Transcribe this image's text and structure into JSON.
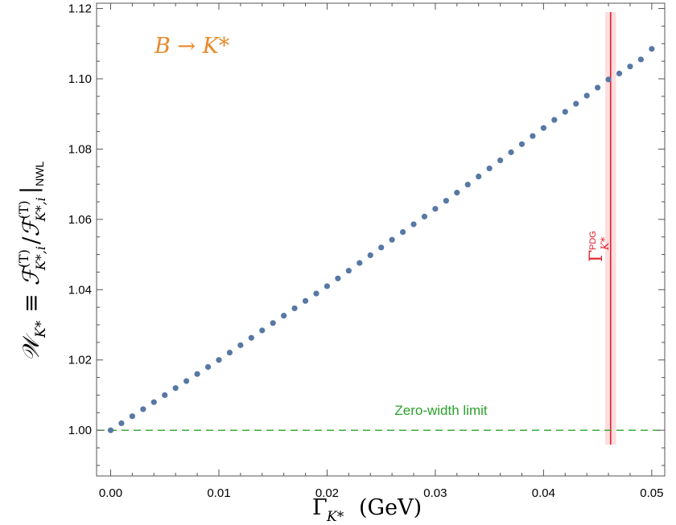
{
  "chart_data": {
    "type": "scatter",
    "title": "",
    "annotation": "B → K*",
    "xlabel": {
      "main": "Γ",
      "sub": "K*",
      "unit": "(GeV)"
    },
    "ylabel": {
      "lhs": "𝒲",
      "lhs_sub": "K*",
      "op": "≡",
      "num": "ℱ",
      "num_sup": "(T)",
      "num_sub": "K*,i",
      "slash": "/",
      "den": "ℱ",
      "den_sup": "(T)",
      "den_sub": "K*,i",
      "bar_sub": "NWL"
    },
    "xlim": [
      -0.0013,
      0.0512
    ],
    "ylim": [
      0.987,
      1.1215
    ],
    "x_ticks": [
      0.0,
      0.01,
      0.02,
      0.03,
      0.04,
      0.05
    ],
    "x_tick_labels": [
      "0.00",
      "0.01",
      "0.02",
      "0.03",
      "0.04",
      "0.05"
    ],
    "y_ticks": [
      1.0,
      1.02,
      1.04,
      1.06,
      1.08,
      1.1,
      1.12
    ],
    "y_tick_labels": [
      "1.00",
      "1.02",
      "1.04",
      "1.06",
      "1.08",
      "1.10",
      "1.12"
    ],
    "series": [
      {
        "color": "#5778a4",
        "x_start": 0.0,
        "x_step": 0.001,
        "y": [
          1.0,
          1.002,
          1.004,
          1.006,
          1.008,
          1.01,
          1.012,
          1.014,
          1.016,
          1.018,
          1.02,
          1.0221,
          1.0242,
          1.0263,
          1.0284,
          1.0305,
          1.0326,
          1.0347,
          1.0368,
          1.0389,
          1.041,
          1.0432,
          1.0454,
          1.0476,
          1.0498,
          1.052,
          1.0542,
          1.0564,
          1.0586,
          1.0608,
          1.063,
          1.0653,
          1.0676,
          1.0699,
          1.0722,
          1.0745,
          1.0768,
          1.0791,
          1.0814,
          1.0837,
          1.086,
          1.0883,
          1.0906,
          1.0929,
          1.0952,
          1.0975,
          1.0998,
          1.1015,
          1.1035,
          1.1055,
          1.1085
        ]
      }
    ],
    "reference_line": {
      "y": 1.0,
      "label": "Zero-width limit",
      "color": "#2ca02c",
      "style": "dashed"
    },
    "pdg_line": {
      "x": 0.0462,
      "band": [
        0.0457,
        0.0467
      ],
      "label_main": "Γ",
      "label_sup": "PDG",
      "label_sub": "K*",
      "color": "#e0202a",
      "band_color": "#fddde0"
    },
    "grid": false,
    "legend": "none"
  }
}
